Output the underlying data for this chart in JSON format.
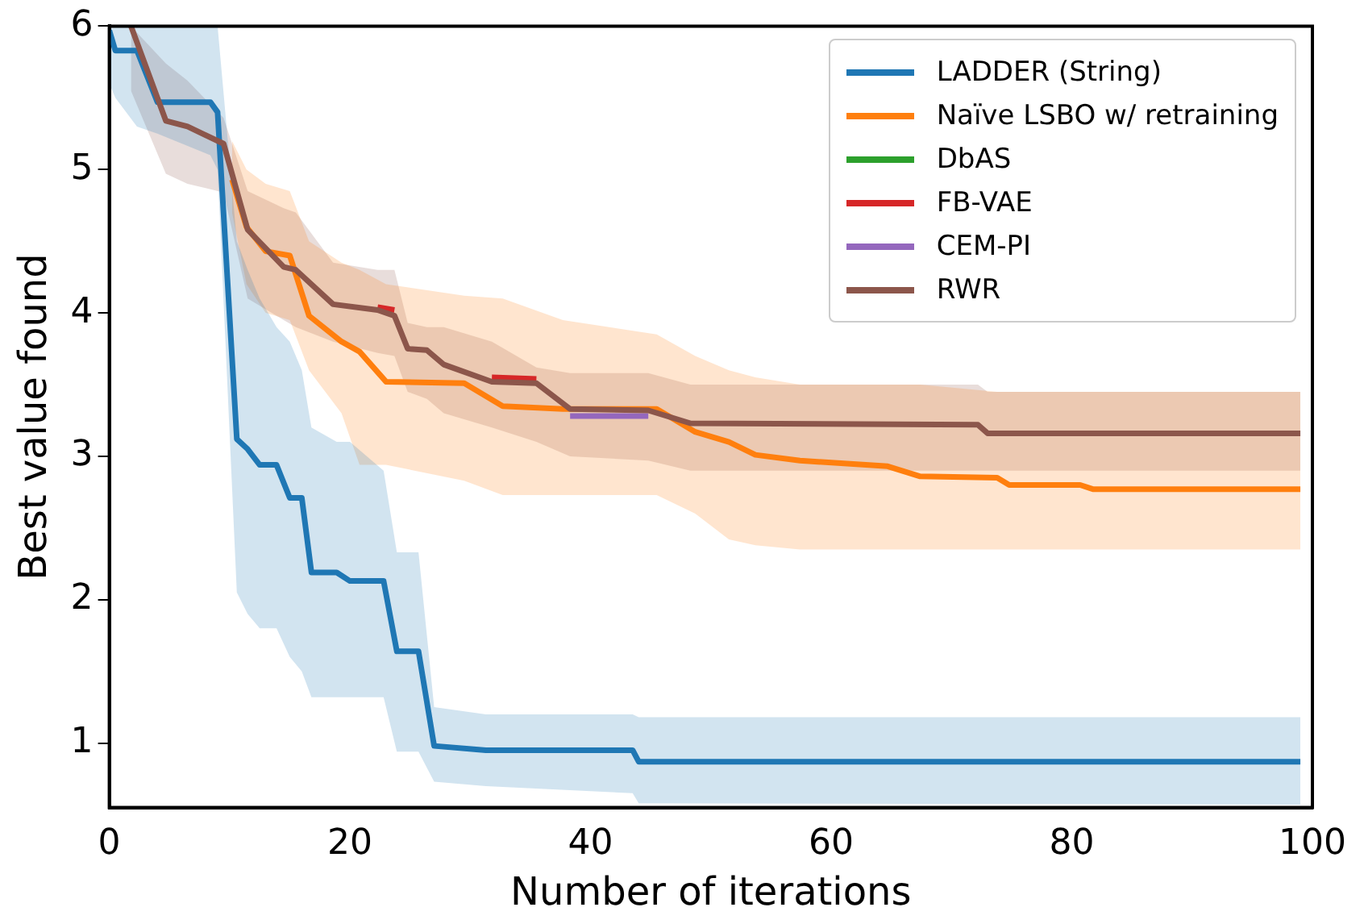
{
  "chart_data": {
    "type": "line",
    "xlabel": "Number of iterations",
    "ylabel": "Best value found",
    "xlim": [
      0,
      100
    ],
    "xticks": [
      0,
      20,
      40,
      60,
      80,
      100
    ],
    "ylim": [
      0.55,
      6
    ],
    "yticks": [
      1,
      2,
      3,
      4,
      5,
      6
    ],
    "grid": false,
    "legend": "top right",
    "marker": "none",
    "line_style": "solid",
    "series": [
      {
        "name": "LADDER (String)",
        "color": "#1f77b4",
        "x": [
          0,
          0.5,
          2.3,
          4,
          8.4,
          9,
          10.6,
          11.5,
          12.5,
          13.9,
          15,
          16,
          16.8,
          18.9,
          20,
          22.8,
          23.9,
          25.7,
          27,
          31.3,
          43.5,
          44,
          99
        ],
        "values": [
          5.97,
          5.83,
          5.83,
          5.47,
          5.47,
          5.4,
          3.12,
          3.05,
          2.94,
          2.94,
          2.71,
          2.71,
          2.19,
          2.19,
          2.13,
          2.13,
          1.64,
          1.64,
          0.98,
          0.95,
          0.95,
          0.87,
          0.87
        ],
        "upper": [
          6,
          6,
          6,
          6,
          6,
          6,
          4.5,
          4.3,
          4.1,
          3.9,
          3.8,
          3.6,
          3.2,
          3.1,
          3.1,
          2.9,
          2.33,
          2.33,
          1.25,
          1.2,
          1.2,
          1.18,
          1.18
        ],
        "lower": [
          5.6,
          5.5,
          5.3,
          5.25,
          5.1,
          5.0,
          2.05,
          1.9,
          1.8,
          1.8,
          1.6,
          1.5,
          1.32,
          1.32,
          1.32,
          1.32,
          0.94,
          0.94,
          0.73,
          0.7,
          0.65,
          0.58,
          0.57
        ]
      },
      {
        "name": "Naïve LSBO w/ retraining",
        "color": "#ff7f0e",
        "x": [
          10.2,
          11.4,
          13,
          15,
          16.6,
          19.3,
          20.8,
          23,
          29.5,
          32.7,
          37.7,
          45.5,
          48.7,
          51.5,
          53.7,
          57.4,
          64.7,
          67.4,
          73.8,
          74.8,
          80.7,
          81.8,
          99
        ],
        "values": [
          4.93,
          4.6,
          4.43,
          4.4,
          3.98,
          3.8,
          3.73,
          3.52,
          3.51,
          3.35,
          3.33,
          3.33,
          3.17,
          3.1,
          3.01,
          2.97,
          2.93,
          2.86,
          2.85,
          2.8,
          2.8,
          2.77,
          2.77
        ],
        "upper": [
          5.2,
          5.0,
          4.9,
          4.85,
          4.5,
          4.35,
          4.3,
          4.2,
          4.12,
          4.1,
          3.95,
          3.85,
          3.7,
          3.6,
          3.55,
          3.5,
          3.5,
          3.5,
          3.45,
          3.45,
          3.45,
          3.45,
          3.45
        ],
        "lower": [
          4.7,
          4.2,
          4.0,
          3.95,
          3.6,
          3.3,
          2.94,
          2.94,
          2.83,
          2.73,
          2.73,
          2.73,
          2.6,
          2.42,
          2.38,
          2.35,
          2.35,
          2.35,
          2.35,
          2.35,
          2.35,
          2.35,
          2.35
        ]
      },
      {
        "name": "DbAS",
        "color": "#2ca02c"
      },
      {
        "name": "FB-VAE",
        "color": "#d62728",
        "x": [
          22.3,
          23.7,
          null,
          31.8,
          35.5
        ],
        "values": [
          4.04,
          4.02,
          null,
          3.55,
          3.54
        ]
      },
      {
        "name": "CEM-PI",
        "color": "#9467bd",
        "x": [
          38.3,
          44.8
        ],
        "values": [
          3.28,
          3.28
        ]
      },
      {
        "name": "RWR",
        "color": "#8c564b",
        "x": [
          1.8,
          4.7,
          6.5,
          9.5,
          11.5,
          14.5,
          15.5,
          18.6,
          22.3,
          23.7,
          24.8,
          26.4,
          27.8,
          31.8,
          35.5,
          38.3,
          44.8,
          48.3,
          72.2,
          73,
          99
        ],
        "values": [
          6,
          5.34,
          5.3,
          5.18,
          4.58,
          4.32,
          4.3,
          4.06,
          4.02,
          3.98,
          3.75,
          3.74,
          3.64,
          3.52,
          3.51,
          3.33,
          3.32,
          3.23,
          3.22,
          3.16,
          3.16
        ],
        "upper": [
          6,
          5.74,
          5.62,
          5.36,
          4.85,
          4.73,
          4.7,
          4.35,
          4.3,
          4.3,
          3.93,
          3.9,
          3.9,
          3.8,
          3.62,
          3.58,
          3.58,
          3.5,
          3.5,
          3.45,
          3.45
        ],
        "lower": [
          5.55,
          4.97,
          4.9,
          4.84,
          4.1,
          3.95,
          3.9,
          3.8,
          3.72,
          3.7,
          3.45,
          3.4,
          3.3,
          3.2,
          3.1,
          3.0,
          2.97,
          2.9,
          2.9,
          2.9,
          2.9
        ]
      }
    ]
  }
}
